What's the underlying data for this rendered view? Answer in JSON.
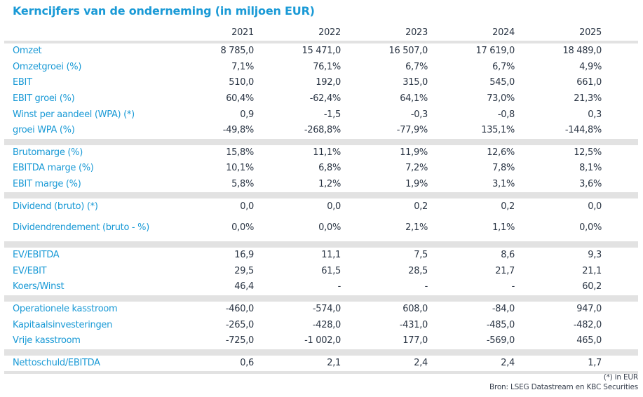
{
  "title": "Kerncijfers van de onderneming (in miljoen EUR)",
  "years": [
    "2021",
    "2022",
    "2023",
    "2024",
    "2025"
  ],
  "groups": [
    [
      {
        "label": "Omzet",
        "values": [
          "8 785,0",
          "15 471,0",
          "16 507,0",
          "17 619,0",
          "18 489,0"
        ]
      },
      {
        "label": "Omzetgroei (%)",
        "values": [
          "7,1%",
          "76,1%",
          "6,7%",
          "6,7%",
          "4,9%"
        ]
      },
      {
        "label": "EBIT",
        "values": [
          "510,0",
          "192,0",
          "315,0",
          "545,0",
          "661,0"
        ]
      },
      {
        "label": "EBIT groei (%)",
        "values": [
          "60,4%",
          "-62,4%",
          "64,1%",
          "73,0%",
          "21,3%"
        ]
      },
      {
        "label": "Winst per aandeel (WPA) (*)",
        "values": [
          "0,9",
          "-1,5",
          "-0,3",
          "-0,8",
          "0,3"
        ]
      },
      {
        "label": "groei WPA (%)",
        "values": [
          "-49,8%",
          "-268,8%",
          "-77,9%",
          "135,1%",
          "-144,8%"
        ]
      }
    ],
    [
      {
        "label": "Brutomarge (%)",
        "values": [
          "15,8%",
          "11,1%",
          "11,9%",
          "12,6%",
          "12,5%"
        ]
      },
      {
        "label": "EBITDA marge (%)",
        "values": [
          "10,1%",
          "6,8%",
          "7,2%",
          "7,8%",
          "8,1%"
        ]
      },
      {
        "label": "EBIT marge (%)",
        "values": [
          "5,8%",
          "1,2%",
          "1,9%",
          "3,1%",
          "3,6%"
        ]
      }
    ],
    [
      {
        "label": "Dividend (bruto) (*)",
        "values": [
          "0,0",
          "0,0",
          "0,2",
          "0,2",
          "0,0"
        ]
      },
      {
        "label": "Dividendrendement (bruto - %)",
        "values": [
          "0,0%",
          "0,0%",
          "2,1%",
          "1,1%",
          "0,0%"
        ],
        "tall": true
      }
    ],
    [
      {
        "label": "EV/EBITDA",
        "values": [
          "16,9",
          "11,1",
          "7,5",
          "8,6",
          "9,3"
        ]
      },
      {
        "label": "EV/EBIT",
        "values": [
          "29,5",
          "61,5",
          "28,5",
          "21,7",
          "21,1"
        ]
      },
      {
        "label": "Koers/Winst",
        "values": [
          "46,4",
          "-",
          "-",
          "-",
          "60,2"
        ]
      }
    ],
    [
      {
        "label": "Operationele kasstroom",
        "values": [
          "-460,0",
          "-574,0",
          "608,0",
          "-84,0",
          "947,0"
        ]
      },
      {
        "label": "Kapitaalsinvesteringen",
        "values": [
          "-265,0",
          "-428,0",
          "-431,0",
          "-485,0",
          "-482,0"
        ]
      },
      {
        "label": "Vrije kasstroom",
        "values": [
          "-725,0",
          "-1 002,0",
          "177,0",
          "-569,0",
          "465,0"
        ]
      }
    ],
    [
      {
        "label": "Nettoschuld/EBITDA",
        "values": [
          "0,6",
          "2,1",
          "2,4",
          "2,4",
          "1,7"
        ]
      }
    ]
  ],
  "footnote": "(*) in EUR",
  "source": "Bron: LSEG Datastream en KBC Securities",
  "colors": {
    "label": "#1a9ad6",
    "value": "#2b3645",
    "separator": "#e2e2e2"
  }
}
